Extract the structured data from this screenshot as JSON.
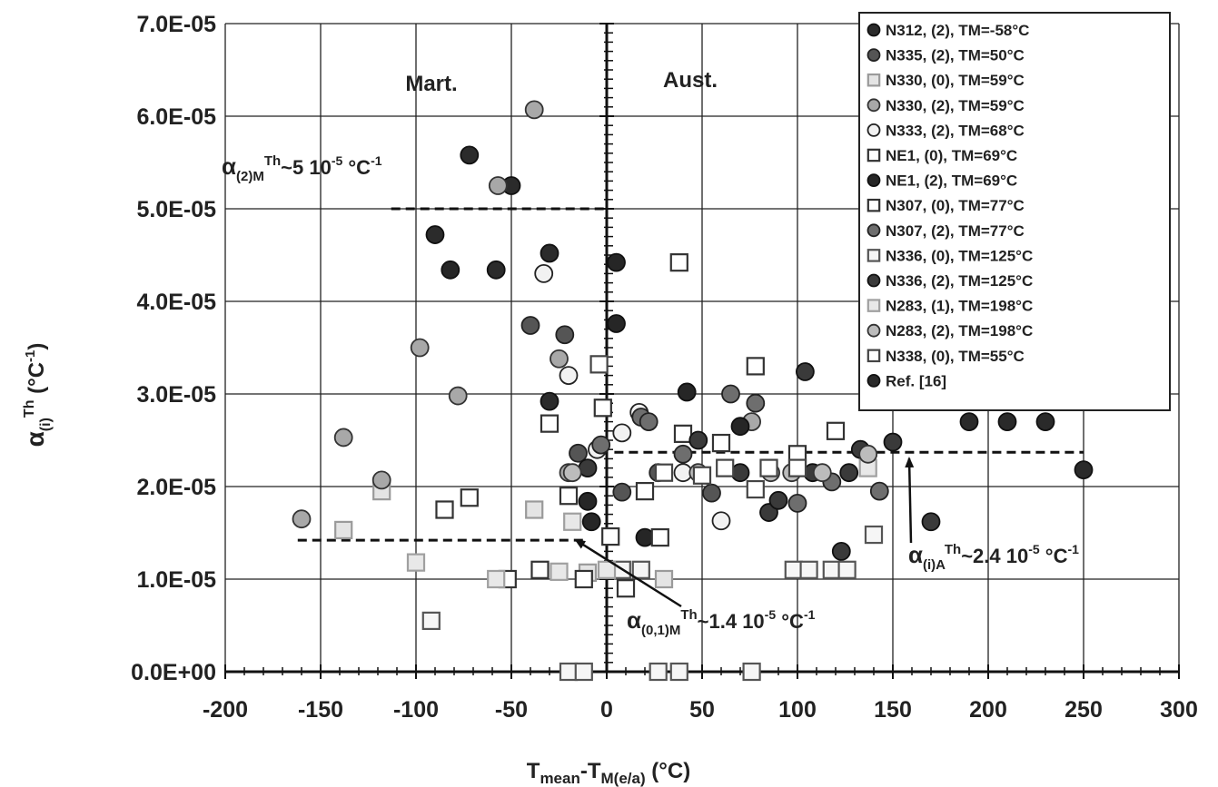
{
  "chart_data": {
    "type": "scatter",
    "xlabel_main": "T",
    "xlabel_sub1": "mean",
    "xlabel_mid": "-T",
    "xlabel_sub2": "M(e/a)",
    "xlabel_unit": " (°C)",
    "ylabel_main": "α",
    "ylabel_sub": "(i)",
    "ylabel_sup": "Th",
    "ylabel_unit": " (°C",
    "ylabel_unit_sup": "-1",
    "ylabel_unit_close": ")",
    "xlim": [
      -200,
      300
    ],
    "ylim": [
      0,
      7e-05
    ],
    "x_ticks": [
      -200,
      -150,
      -100,
      -50,
      0,
      50,
      100,
      150,
      200,
      250,
      300
    ],
    "x_tick_labels": [
      "-200",
      "-150",
      "-100",
      "-50",
      "0",
      "50",
      "100",
      "150",
      "200",
      "250",
      "300"
    ],
    "y_ticks": [
      0,
      1e-05,
      2e-05,
      3e-05,
      4e-05,
      5e-05,
      6e-05,
      7e-05
    ],
    "y_tick_labels": [
      "0.0E+00",
      "1.0E-05",
      "2.0E-05",
      "3.0E-05",
      "4.0E-05",
      "5.0E-05",
      "6.0E-05",
      "7.0E-05"
    ],
    "grid": true,
    "legend_position": "top-right",
    "region_labels": [
      {
        "text": "Mart.",
        "x": -100,
        "y": 6.35e-05
      },
      {
        "text": "Aust.",
        "x": 55,
        "y": 6.4e-05
      }
    ],
    "reference_lines": [
      {
        "x1": -113,
        "x2": 0,
        "y": 5e-05
      },
      {
        "x1": 4,
        "x2": 250,
        "y": 2.37e-05
      },
      {
        "x1": -162,
        "x2": -12,
        "y": 1.42e-05
      }
    ],
    "annotations": [
      {
        "main": "α",
        "sub": "(2)M",
        "sup": "Th",
        "rest": "~5 10",
        "exp": "-5",
        "unit": " °C",
        "unit_exp": "-1"
      },
      {
        "main": "α",
        "sub": "(i)A",
        "sup": "Th",
        "rest": "~2.4 10",
        "exp": "-5",
        "unit": " °C",
        "unit_exp": "-1"
      },
      {
        "main": "α",
        "sub": "(0,1)M",
        "sup": "Th",
        "rest": "~1.4 10",
        "exp": "-5",
        "unit": " °C",
        "unit_exp": "-1"
      }
    ],
    "series": [
      {
        "name": "N312, (2), TM=-58°C",
        "marker": "circle",
        "fill": "#2b2b2b",
        "stroke": "#111111",
        "points": [
          [
            -90,
            4.72e-05
          ],
          [
            -72,
            5.58e-05
          ],
          [
            -58,
            4.34e-05
          ],
          [
            -50,
            5.25e-05
          ],
          [
            -30,
            2.92e-05
          ],
          [
            -30,
            4.52e-05
          ]
        ]
      },
      {
        "name": "N335, (2), TM=50°C",
        "marker": "circle",
        "fill": "#555555",
        "stroke": "#222222",
        "points": [
          [
            -40,
            3.74e-05
          ],
          [
            -22,
            3.64e-05
          ],
          [
            -15,
            2.36e-05
          ],
          [
            8,
            1.94e-05
          ],
          [
            27,
            2.15e-05
          ],
          [
            55,
            1.93e-05
          ]
        ]
      },
      {
        "name": "N330, (0), TM=59°C",
        "marker": "square",
        "fill": "#e4e4e4",
        "stroke": "#9a9a9a",
        "points": [
          [
            -118,
            1.95e-05
          ],
          [
            -138,
            1.53e-05
          ],
          [
            -38,
            1.75e-05
          ],
          [
            -10,
            1.07e-05
          ],
          [
            30,
            1e-05
          ]
        ]
      },
      {
        "name": "N330, (2), TM=59°C",
        "marker": "circle",
        "fill": "#a8a8a8",
        "stroke": "#333333",
        "points": [
          [
            -38,
            6.07e-05
          ],
          [
            -57,
            5.25e-05
          ],
          [
            -98,
            3.5e-05
          ],
          [
            -78,
            2.98e-05
          ],
          [
            -138,
            2.53e-05
          ],
          [
            -118,
            2.07e-05
          ],
          [
            -160,
            1.65e-05
          ],
          [
            -25,
            3.38e-05
          ],
          [
            -20,
            2.15e-05
          ],
          [
            76,
            2.7e-05
          ]
        ]
      },
      {
        "name": "N333, (2), TM=68°C",
        "marker": "circle",
        "fill": "#f2f2f2",
        "stroke": "#222222",
        "points": [
          [
            -33,
            4.3e-05
          ],
          [
            -20,
            3.2e-05
          ],
          [
            -5,
            2.4e-05
          ],
          [
            8,
            2.58e-05
          ],
          [
            17,
            2.8e-05
          ],
          [
            40,
            2.15e-05
          ],
          [
            60,
            1.63e-05
          ]
        ]
      },
      {
        "name": "NE1, (0), TM=69°C",
        "marker": "square",
        "fill": "#ffffff",
        "stroke": "#333333",
        "points": [
          [
            38,
            4.42e-05
          ],
          [
            78,
            3.3e-05
          ],
          [
            -30,
            2.68e-05
          ],
          [
            -2,
            2.85e-05
          ],
          [
            40,
            2.57e-05
          ],
          [
            60,
            2.47e-05
          ],
          [
            -20,
            1.9e-05
          ],
          [
            20,
            1.95e-05
          ]
        ]
      },
      {
        "name": "NE1, (2), TM=69°C",
        "marker": "circle",
        "fill": "#262626",
        "stroke": "#111111",
        "points": [
          [
            -82,
            4.34e-05
          ],
          [
            5,
            4.42e-05
          ],
          [
            5,
            3.76e-05
          ],
          [
            42,
            3.02e-05
          ],
          [
            70,
            2.65e-05
          ],
          [
            -10,
            1.84e-05
          ],
          [
            -8,
            1.62e-05
          ],
          [
            20,
            1.45e-05
          ]
        ]
      },
      {
        "name": "N307, (0), TM=77°C",
        "marker": "square",
        "fill": "#ffffff",
        "stroke": "#333333",
        "points": [
          [
            -72,
            1.88e-05
          ],
          [
            -85,
            1.75e-05
          ],
          [
            -52,
            1e-05
          ],
          [
            -35,
            1.1e-05
          ],
          [
            -12,
            1e-05
          ],
          [
            2,
            1.46e-05
          ],
          [
            28,
            1.45e-05
          ],
          [
            10,
            9e-06
          ],
          [
            120,
            2.6e-05
          ],
          [
            100,
            2.35e-05
          ]
        ]
      },
      {
        "name": "N307, (2), TM=77°C",
        "marker": "circle",
        "fill": "#6e6e6e",
        "stroke": "#222222",
        "points": [
          [
            -3,
            2.45e-05
          ],
          [
            18,
            2.75e-05
          ],
          [
            22,
            2.7e-05
          ],
          [
            40,
            2.35e-05
          ],
          [
            65,
            3e-05
          ],
          [
            78,
            2.9e-05
          ],
          [
            100,
            1.82e-05
          ],
          [
            118,
            2.05e-05
          ],
          [
            143,
            1.95e-05
          ]
        ]
      },
      {
        "name": "N336, (0), TM=125°C",
        "marker": "square",
        "fill": "#f6f6f6",
        "stroke": "#555555",
        "points": [
          [
            -92,
            5.5e-06
          ],
          [
            -20,
            0
          ],
          [
            -12,
            0
          ],
          [
            27,
            0
          ],
          [
            38,
            0
          ],
          [
            76,
            0
          ],
          [
            8,
            1.1e-05
          ],
          [
            18,
            1.1e-05
          ],
          [
            98,
            1.1e-05
          ],
          [
            106,
            1.1e-05
          ],
          [
            118,
            1.1e-05
          ],
          [
            126,
            1.1e-05
          ],
          [
            140,
            1.48e-05
          ]
        ]
      },
      {
        "name": "N336, (2), TM=125°C",
        "marker": "circle",
        "fill": "#3a3a3a",
        "stroke": "#111111",
        "points": [
          [
            -10,
            2.2e-05
          ],
          [
            48,
            2.5e-05
          ],
          [
            70,
            2.15e-05
          ],
          [
            85,
            1.72e-05
          ],
          [
            90,
            1.85e-05
          ],
          [
            104,
            3.24e-05
          ],
          [
            108,
            2.15e-05
          ],
          [
            123,
            1.3e-05
          ],
          [
            127,
            2.15e-05
          ],
          [
            133,
            2.4e-05
          ],
          [
            150,
            2.48e-05
          ],
          [
            170,
            1.62e-05
          ]
        ]
      },
      {
        "name": "N283, (1), TM=198°C",
        "marker": "square",
        "fill": "#e8e8e8",
        "stroke": "#a0a0a0",
        "points": [
          [
            -100,
            1.18e-05
          ],
          [
            -58,
            1e-05
          ],
          [
            -25,
            1.08e-05
          ],
          [
            -18,
            1.62e-05
          ],
          [
            0,
            1.1e-05
          ],
          [
            137,
            2.2e-05
          ]
        ]
      },
      {
        "name": "N283, (2), TM=198°C",
        "marker": "circle",
        "fill": "#bcbcbc",
        "stroke": "#333333",
        "points": [
          [
            -18,
            2.15e-05
          ],
          [
            48,
            2.15e-05
          ],
          [
            86,
            2.15e-05
          ],
          [
            97,
            2.15e-05
          ],
          [
            113,
            2.15e-05
          ],
          [
            137,
            2.35e-05
          ]
        ]
      },
      {
        "name": "N338, (0), TM=55°C",
        "marker": "square",
        "fill": "#ffffff",
        "stroke": "#444444",
        "points": [
          [
            -4,
            3.32e-05
          ],
          [
            30,
            2.15e-05
          ],
          [
            50,
            2.12e-05
          ],
          [
            62,
            2.2e-05
          ],
          [
            78,
            1.97e-05
          ],
          [
            85,
            2.2e-05
          ],
          [
            100,
            2.2e-05
          ]
        ]
      },
      {
        "name": "Ref.  [16]",
        "marker": "circle",
        "fill": "#2a2a2a",
        "stroke": "#111111",
        "points": [
          [
            190,
            2.7e-05
          ],
          [
            210,
            2.7e-05
          ],
          [
            230,
            2.7e-05
          ],
          [
            250,
            2.18e-05
          ]
        ]
      }
    ]
  }
}
